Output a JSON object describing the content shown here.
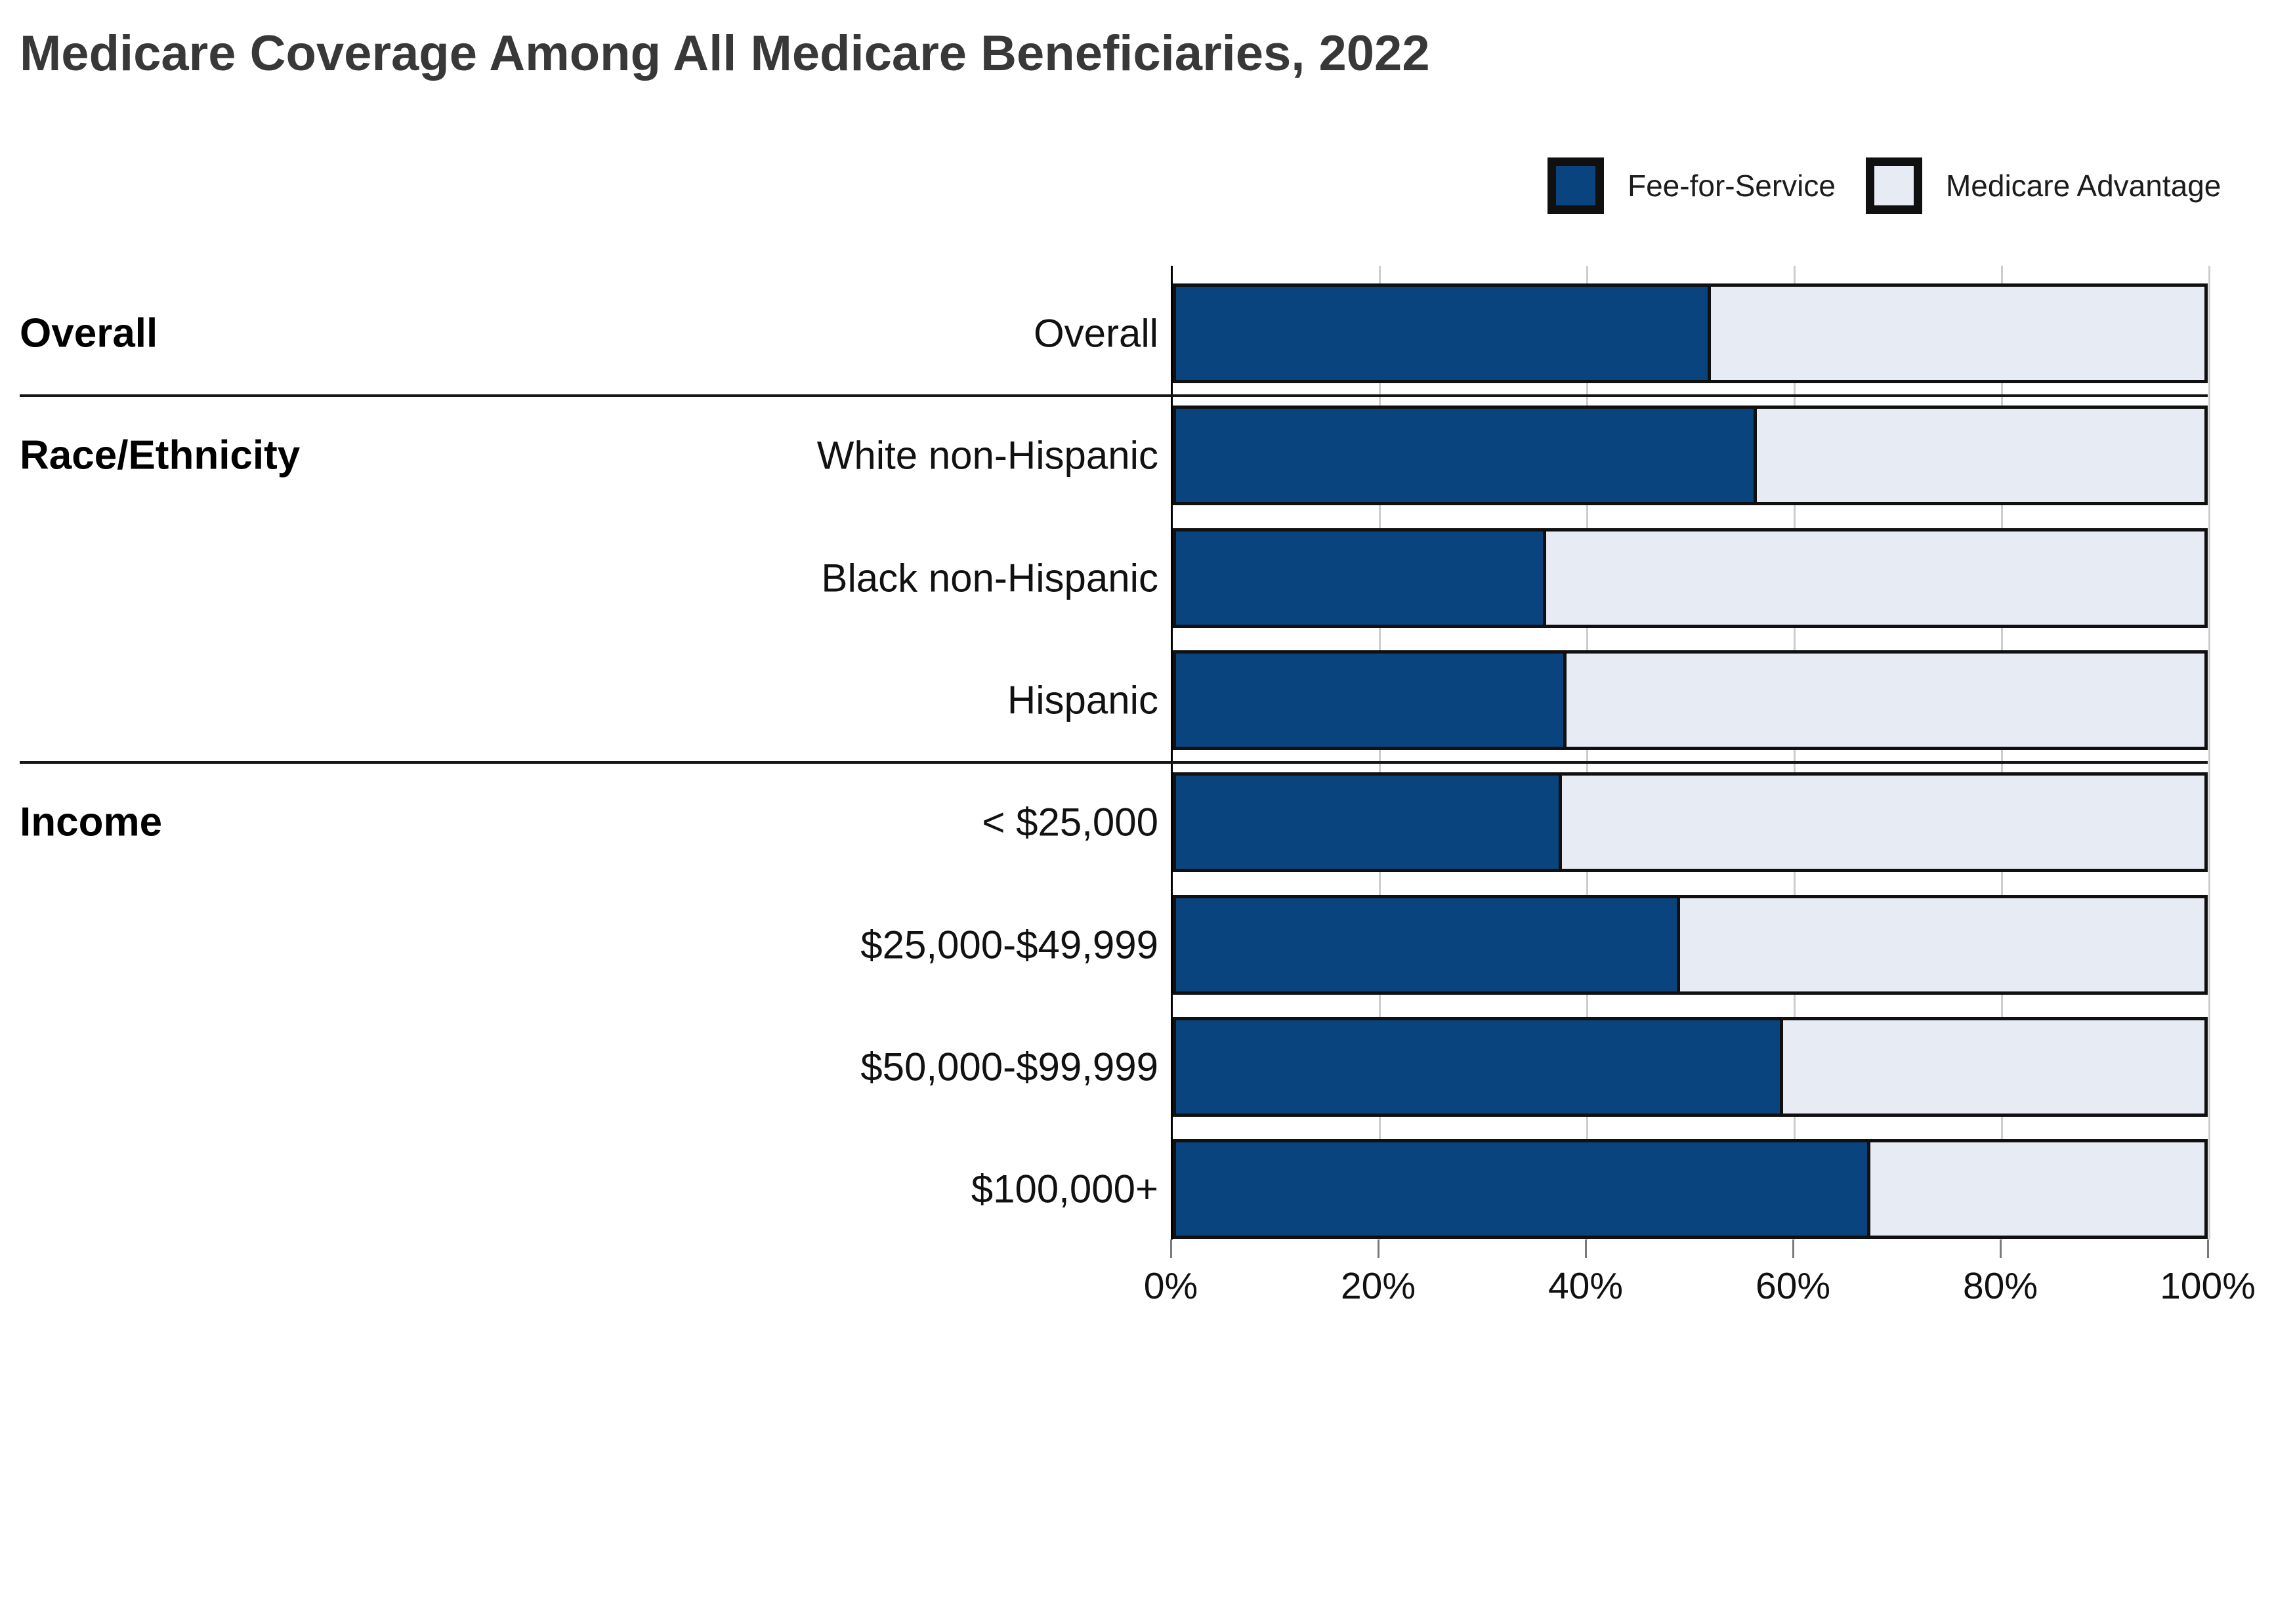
{
  "title": "Medicare Coverage Among All Medicare Beneficiaries, 2022",
  "legend": {
    "items": [
      {
        "label": "Fee-for-Service",
        "color": "#0a447e",
        "border_color": "#101010"
      },
      {
        "label": "Medicare Advantage",
        "color": "#e7ebf3",
        "border_color": "#101010"
      }
    ]
  },
  "chart_data": {
    "type": "bar",
    "orientation": "horizontal",
    "stacked": true,
    "title": "Medicare Coverage Among All Medicare Beneficiaries, 2022",
    "xlabel": "",
    "ylabel": "",
    "xlim": [
      0,
      100
    ],
    "grid": true,
    "legend_position": "top-right",
    "x_axis": {
      "unit": "%",
      "tick_labels": [
        "0%",
        "20%",
        "40%",
        "60%",
        "80%",
        "100%"
      ],
      "tick_values": [
        0,
        20,
        40,
        60,
        80,
        100
      ]
    },
    "groups": [
      {
        "label": "Overall",
        "categories": [
          "Overall"
        ]
      },
      {
        "label": "Race/Ethnicity",
        "categories": [
          "White non-Hispanic",
          "Black non-Hispanic",
          "Hispanic"
        ]
      },
      {
        "label": "Income",
        "categories": [
          "< $25,000",
          "$25,000-$49,999",
          "$50,000-$99,999",
          "$100,000+"
        ]
      }
    ],
    "categories": [
      "Overall",
      "White non-Hispanic",
      "Black non-Hispanic",
      "Hispanic",
      "< $25,000",
      "$25,000-$49,999",
      "$50,000-$99,999",
      "$100,000+"
    ],
    "series": [
      {
        "name": "Fee-for-Service",
        "color": "#0a447e",
        "values": [
          52,
          56.5,
          36,
          38,
          37.5,
          49,
          59,
          67.5
        ]
      },
      {
        "name": "Medicare Advantage",
        "color": "#e7ebf3",
        "values": [
          48,
          43.5,
          64,
          62,
          62.5,
          51,
          41,
          32.5
        ]
      }
    ]
  }
}
